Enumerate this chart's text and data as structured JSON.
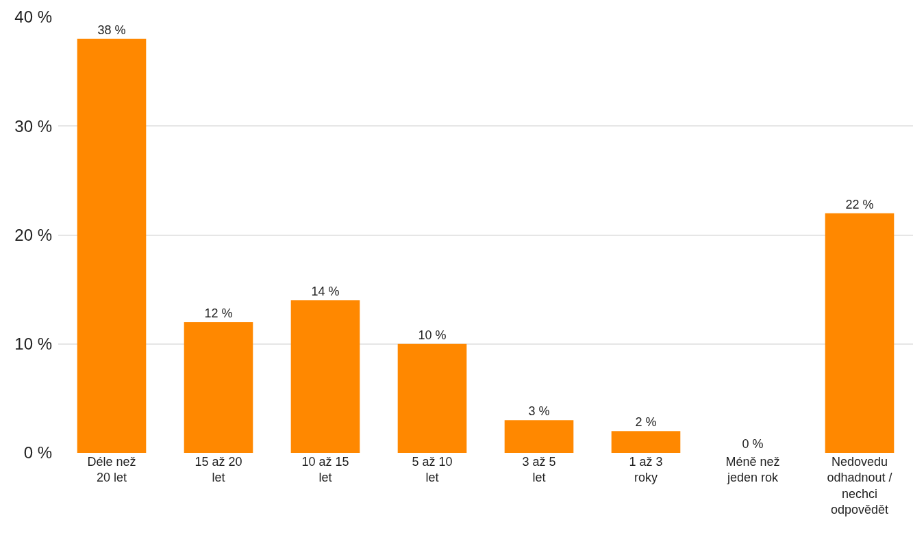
{
  "chart_data": {
    "type": "bar",
    "categories": [
      "Déle než 20 let",
      "15 až 20 let",
      "10 až 15 let",
      "5 až 10 let",
      "3 až 5 let",
      "1 až 3 roky",
      "Méně než jeden rok",
      "Nedovedu odhadnout / nechci odpovědět"
    ],
    "values": [
      38,
      12,
      14,
      10,
      3,
      2,
      0,
      22
    ],
    "value_labels": [
      "38 %",
      "12 %",
      "14 %",
      "10 %",
      "3 %",
      "2 %",
      "0 %",
      "22 %"
    ],
    "color": "#ff8800",
    "ylim": [
      0,
      40
    ],
    "yticks": [
      {
        "value": 0,
        "label": "0 %"
      },
      {
        "value": 10,
        "label": "10 %"
      },
      {
        "value": 20,
        "label": "20 %"
      },
      {
        "value": 30,
        "label": "30 %"
      },
      {
        "value": 40,
        "label": "40 %"
      }
    ],
    "grid": "y",
    "legend": false
  }
}
